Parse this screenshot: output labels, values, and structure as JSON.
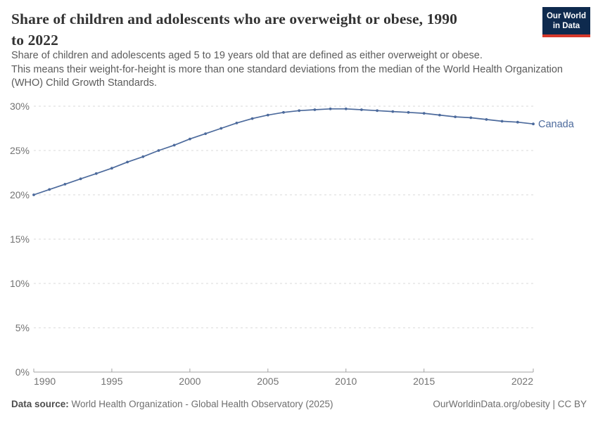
{
  "header": {
    "title_lines": [
      "Share of children and adolescents who are overweight or obese, 1990",
      "to 2022"
    ],
    "subtitle_lines": [
      "Share of children and adolescents aged 5 to 19 years old that are defined as either overweight or obese.",
      "This means their weight-for-height is more than one standard deviations from the median of the World Health Organization (WHO) Child Growth Standards."
    ],
    "logo": {
      "line1": "Our World",
      "line2": "in Data",
      "bg_color": "#0e2a4e",
      "bar_color": "#d6382b"
    }
  },
  "footer": {
    "datasource_label": "Data source:",
    "datasource_text": " World Health Organization - Global Health Observatory (2025)",
    "credit": "OurWorldinData.org/obesity | CC BY"
  },
  "chart_data": {
    "type": "line",
    "title": "Share of children and adolescents who are overweight or obese, 1990 to 2022",
    "x": [
      1990,
      1991,
      1992,
      1993,
      1994,
      1995,
      1996,
      1997,
      1998,
      1999,
      2000,
      2001,
      2002,
      2003,
      2004,
      2005,
      2006,
      2007,
      2008,
      2009,
      2010,
      2011,
      2012,
      2013,
      2014,
      2015,
      2016,
      2017,
      2018,
      2019,
      2020,
      2021,
      2022
    ],
    "series": [
      {
        "name": "Canada",
        "color": "#4c6a9c",
        "values": [
          20.0,
          20.6,
          21.2,
          21.8,
          22.4,
          23.0,
          23.7,
          24.3,
          25.0,
          25.6,
          26.3,
          26.9,
          27.5,
          28.1,
          28.6,
          29.0,
          29.3,
          29.5,
          29.6,
          29.7,
          29.7,
          29.6,
          29.5,
          29.4,
          29.3,
          29.2,
          29.0,
          28.8,
          28.7,
          28.5,
          28.3,
          28.2,
          28.0
        ]
      }
    ],
    "xlim": [
      1990,
      2022
    ],
    "ylim": [
      0,
      30
    ],
    "yticks": [
      0,
      5,
      10,
      15,
      20,
      25,
      30
    ],
    "ytick_suffix": "%",
    "xticks": [
      1990,
      1995,
      2000,
      2005,
      2010,
      2015,
      2022
    ],
    "grid": "horizontal-dashed",
    "legend": "end-of-line-label",
    "colors": {
      "grid": "#d9d9d9",
      "axis": "#a3a3a3",
      "tick_label": "#737373",
      "entity_label": "#4c6a9c"
    }
  }
}
